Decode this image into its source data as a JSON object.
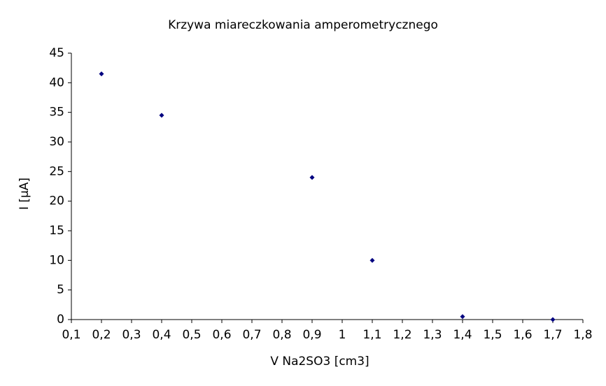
{
  "chart_data": {
    "type": "scatter",
    "title": "Krzywa miareczkowania amperometrycznego",
    "x_label": "V Na2SO3 [cm3]",
    "y_label": "I [µA]",
    "x": [
      0.2,
      0.4,
      0.9,
      1.1,
      1.4,
      1.7
    ],
    "values": [
      41.5,
      34.5,
      24,
      10,
      0.5,
      0
    ],
    "color": "#000080",
    "xlim": [
      0.1,
      1.8
    ],
    "xticks": [
      {
        "value": 0.1,
        "label": "0,1"
      },
      {
        "value": 0.2,
        "label": "0,2"
      },
      {
        "value": 0.3,
        "label": "0,3"
      },
      {
        "value": 0.4,
        "label": "0,4"
      },
      {
        "value": 0.5,
        "label": "0,5"
      },
      {
        "value": 0.6,
        "label": "0,6"
      },
      {
        "value": 0.7,
        "label": "0,7"
      },
      {
        "value": 0.8,
        "label": "0,8"
      },
      {
        "value": 0.9,
        "label": "0,9"
      },
      1,
      {
        "value": 1.1,
        "label": "1,1"
      },
      {
        "value": 1.2,
        "label": "1,2"
      },
      {
        "value": 1.3,
        "label": "1,3"
      },
      {
        "value": 1.4,
        "label": "1,4"
      },
      {
        "value": 1.5,
        "label": "1,5"
      },
      {
        "value": 1.6,
        "label": "1,6"
      },
      {
        "value": 1.7,
        "label": "1,7"
      },
      {
        "value": 1.8,
        "label": "1,8"
      }
    ],
    "ylim": [
      0,
      45
    ],
    "yticks": [
      0,
      5,
      10,
      15,
      20,
      25,
      30,
      35,
      40,
      45
    ],
    "grid": false
  }
}
